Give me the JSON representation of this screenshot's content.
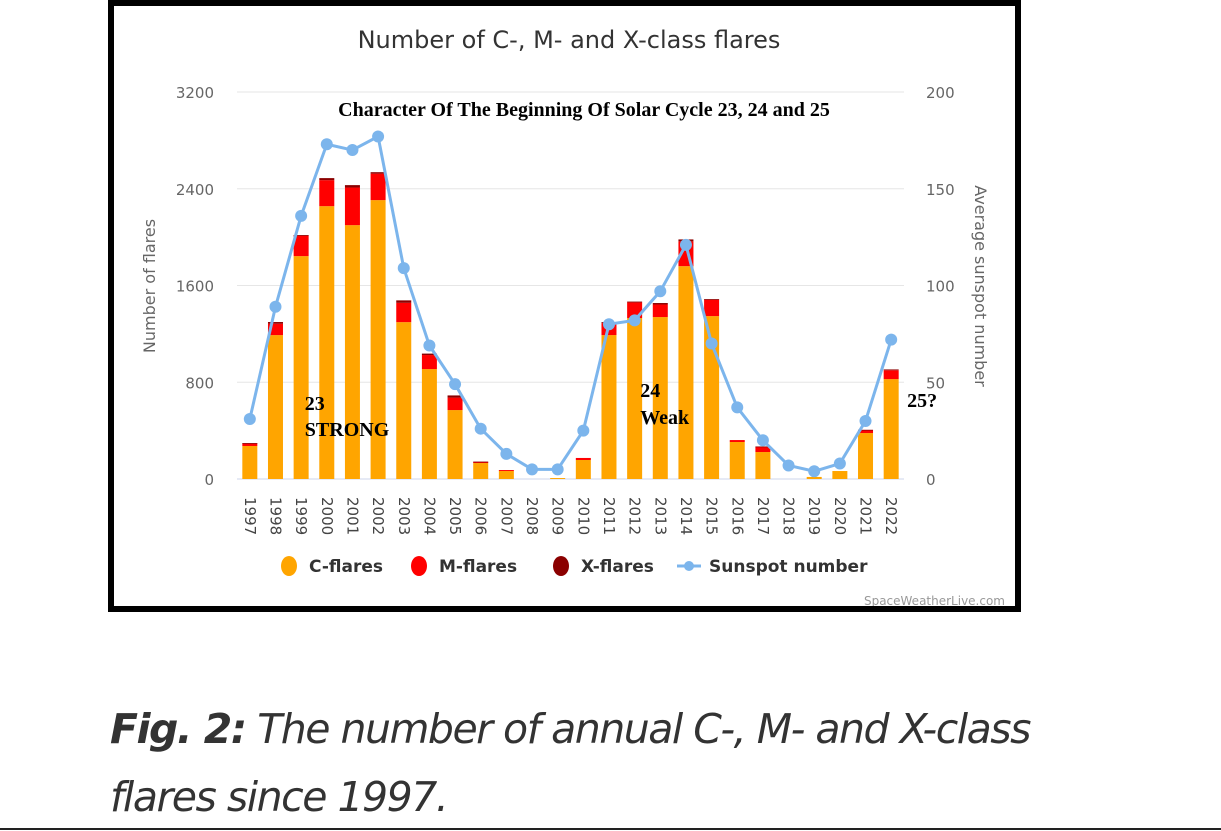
{
  "chart_data": {
    "type": "bar",
    "stacked": true,
    "title": "Number of C-, M- and X-class flares",
    "subtitle": "Character Of The Beginning Of Solar Cycle 23, 24 and 25",
    "xlabel": "",
    "ylabel": "Number of flares",
    "y2label": "Average sunspot number",
    "ylim": [
      0,
      3200
    ],
    "y2lim": [
      0,
      200
    ],
    "yticks": [
      "0",
      "800",
      "1600",
      "2400",
      "3200"
    ],
    "y2ticks": [
      "0",
      "50",
      "100",
      "150",
      "200"
    ],
    "grid": true,
    "legend_position": "bottom",
    "categories": [
      "1997",
      "1998",
      "1999",
      "2000",
      "2001",
      "2002",
      "2003",
      "2004",
      "2005",
      "2006",
      "2007",
      "2008",
      "2009",
      "2010",
      "2011",
      "2012",
      "2013",
      "2014",
      "2015",
      "2016",
      "2017",
      "2018",
      "2019",
      "2020",
      "2021",
      "2022"
    ],
    "series": [
      {
        "name": "C-flares",
        "type": "bar",
        "axis": "left",
        "color": "#FFA500",
        "values": [
          273,
          1190,
          1843,
          2256,
          2099,
          2306,
          1297,
          909,
          570,
          132,
          66,
          0,
          8,
          157,
          1190,
          1331,
          1339,
          1760,
          1347,
          306,
          223,
          0,
          17,
          66,
          380,
          826
        ]
      },
      {
        "name": "M-flares",
        "type": "bar",
        "axis": "left",
        "color": "#FF0000",
        "values": [
          21,
          94,
          170,
          215,
          311,
          219,
          160,
          116,
          103,
          8,
          8,
          0,
          0,
          17,
          99,
          129,
          104,
          205,
          138,
          16,
          42,
          0,
          0,
          0,
          25,
          73
        ]
      },
      {
        "name": "X-flares",
        "type": "bar",
        "axis": "left",
        "color": "#8B0000",
        "values": [
          3,
          14,
          4,
          17,
          20,
          12,
          20,
          12,
          18,
          4,
          0,
          0,
          0,
          0,
          8,
          7,
          12,
          16,
          2,
          0,
          4,
          0,
          0,
          0,
          2,
          7
        ]
      },
      {
        "name": "Sunspot number",
        "type": "line",
        "axis": "right",
        "color": "#7CB5EC",
        "values": [
          31,
          89,
          136,
          173,
          170,
          177,
          109,
          69,
          49,
          26,
          13,
          5,
          5,
          25,
          80,
          82,
          97,
          121,
          70,
          37,
          20,
          7,
          4,
          8,
          30,
          72
        ]
      }
    ],
    "annotations": [
      {
        "text": "23",
        "category": "2000"
      },
      {
        "text": "STRONG",
        "category": "2000"
      },
      {
        "text": "24",
        "category": "2013"
      },
      {
        "text": "Weak",
        "category": "2013"
      },
      {
        "text": "25?",
        "category": "2022"
      }
    ],
    "credit": "SpaceWeatherLive.com"
  },
  "caption": {
    "label": "Fig. 2:",
    "text_line1": " The number of annual C-, M- and X-class",
    "text_line2": "flares since 1997."
  }
}
